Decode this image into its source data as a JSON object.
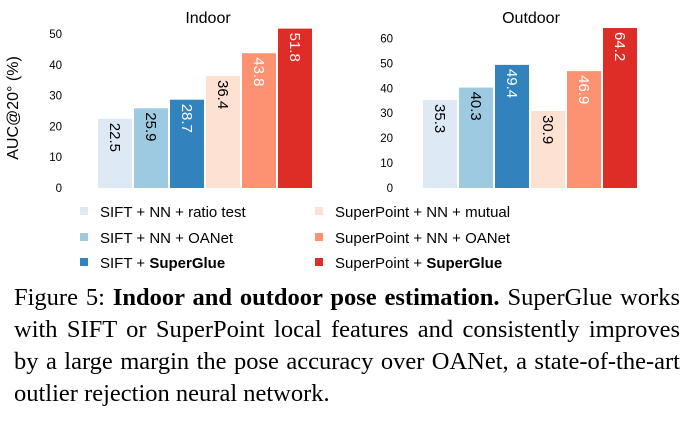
{
  "chart_data": [
    {
      "type": "bar",
      "title": "Indoor",
      "ylabel": "AUC@20° (%)",
      "ylim": [
        0,
        52
      ],
      "yticks": [
        0,
        10,
        20,
        30,
        40,
        50
      ],
      "categories": [
        "SIFT + NN + ratio test",
        "SIFT + NN + OANet",
        "SIFT + SuperGlue",
        "SuperPoint + NN + mutual",
        "SuperPoint + NN + OANet",
        "SuperPoint + SuperGlue"
      ],
      "values": [
        22.5,
        25.9,
        28.7,
        36.4,
        43.8,
        51.8
      ],
      "labels": [
        "22.5",
        "25.9",
        "28.7",
        "36.4",
        "43.8",
        "51.8"
      ],
      "grid": false
    },
    {
      "type": "bar",
      "title": "Outdoor",
      "ylabel": "",
      "ylim": [
        0,
        64.2
      ],
      "yticks": [
        0,
        10,
        20,
        30,
        40,
        50,
        60
      ],
      "categories": [
        "SIFT + NN + ratio test",
        "SIFT + NN + OANet",
        "SIFT + SuperGlue",
        "SuperPoint + NN + mutual",
        "SuperPoint + NN + OANet",
        "SuperPoint + SuperGlue"
      ],
      "values": [
        35.3,
        40.3,
        49.4,
        30.9,
        46.9,
        64.2
      ],
      "labels": [
        "35.3",
        "40.3",
        "49.4",
        "30.9",
        "46.9",
        "64.2"
      ],
      "grid": false
    }
  ],
  "legend": {
    "placement": "bottom",
    "items": [
      {
        "prefix": "SIFT + NN + ratio test",
        "bold": "",
        "color": "#dde9f4"
      },
      {
        "prefix": "SIFT + NN + OANet",
        "bold": "",
        "color": "#9ecae1"
      },
      {
        "prefix": "SIFT + ",
        "bold": "SuperGlue",
        "color": "#3182bd"
      },
      {
        "prefix": "SuperPoint + NN + mutual",
        "bold": "",
        "color": "#fde1d2"
      },
      {
        "prefix": "SuperPoint + NN + OANet",
        "bold": "",
        "color": "#fc9272"
      },
      {
        "prefix": "SuperPoint + ",
        "bold": "SuperGlue",
        "color": "#de2d26"
      }
    ]
  },
  "caption": {
    "label": "Figure 5:",
    "bold": "Indoor and outdoor pose estimation.",
    "text": "SuperGlue works with SIFT or SuperPoint local features and consistently improves by a large margin the pose accuracy over OANet, a state-of-the-art outlier rejection neural network."
  }
}
